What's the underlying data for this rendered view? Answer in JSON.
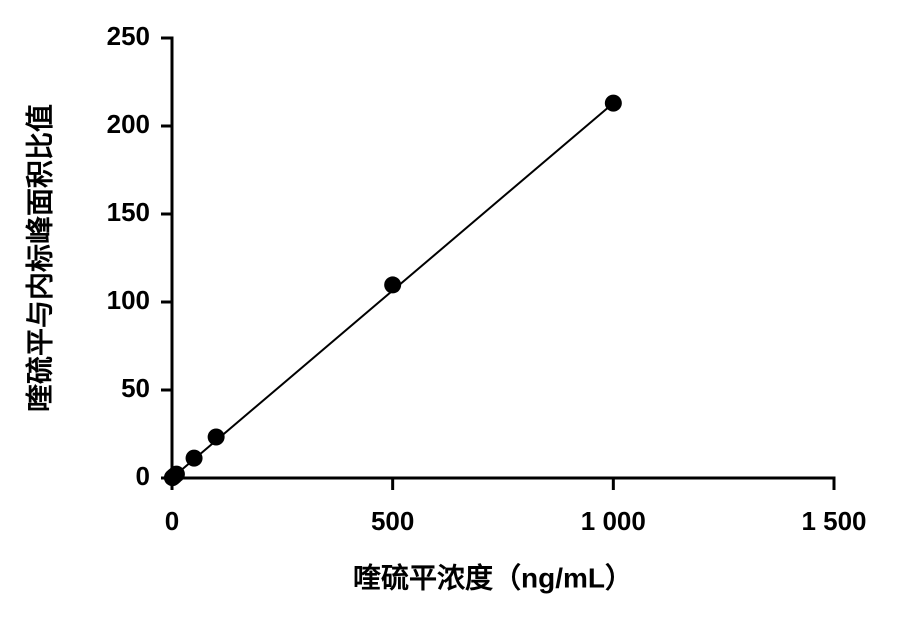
{
  "chart_data": {
    "type": "scatter",
    "x_label": "喹硫平浓度（ng/mL）",
    "y_label": "喹硫平与内标峰面积比值",
    "x": [
      1,
      5,
      10,
      50,
      100,
      500,
      1000
    ],
    "values": [
      0.2,
      1.1,
      2.2,
      11.3,
      23.3,
      109.7,
      213
    ],
    "color": "#000000",
    "fit_line": {
      "x": [
        0,
        1000
      ],
      "y": [
        0,
        213
      ]
    },
    "xlim": [
      0,
      1500
    ],
    "xticks": [
      0,
      500,
      {
        "value": 1000,
        "label": "1 000"
      },
      {
        "value": 1500,
        "label": "1 500"
      }
    ],
    "ylim": [
      0,
      250
    ],
    "yticks": [
      0,
      50,
      100,
      150,
      200,
      250
    ]
  }
}
